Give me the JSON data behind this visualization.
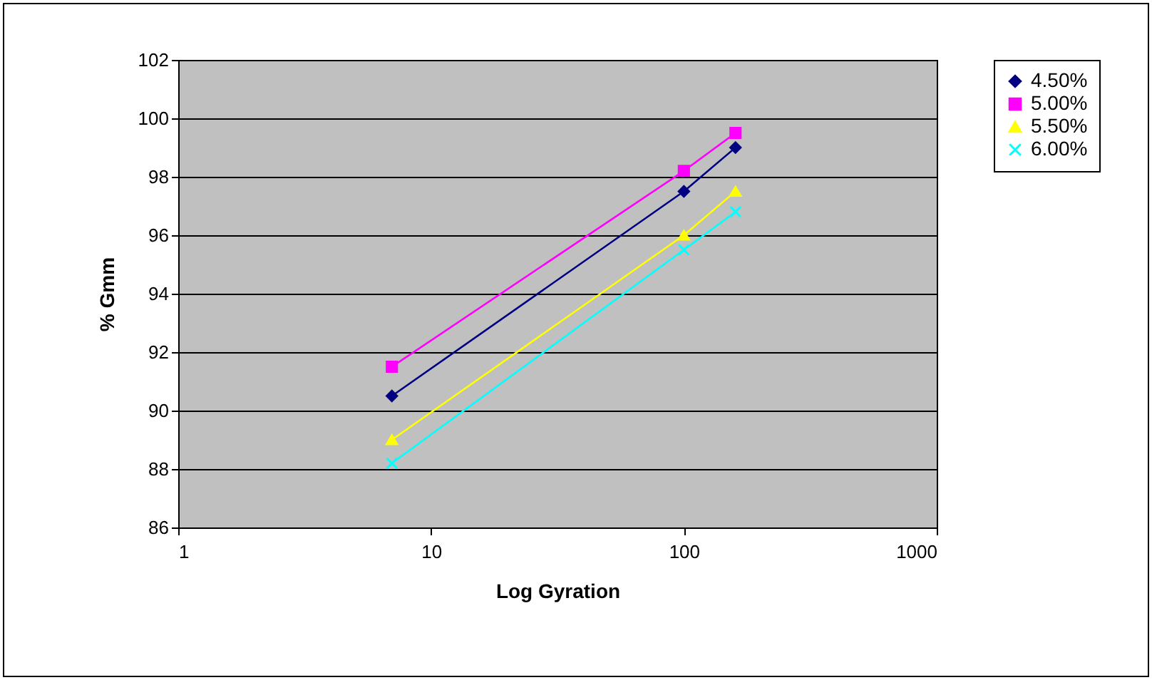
{
  "chart_data": {
    "type": "line",
    "xlabel": "Log Gyration",
    "ylabel": "% Gmm",
    "log": "x",
    "xlim": [
      1,
      1000
    ],
    "xticks": [
      1,
      10,
      100,
      1000
    ],
    "ylim": [
      86,
      102
    ],
    "yticks": [
      86,
      88,
      90,
      92,
      94,
      96,
      98,
      100,
      102
    ],
    "grid": "y",
    "legend": "right",
    "x": [
      7,
      100,
      160
    ],
    "series": [
      {
        "name": "4.50%",
        "color": "#000080",
        "marker": "diamond",
        "values": [
          90.5,
          97.5,
          99.0
        ]
      },
      {
        "name": "5.00%",
        "color": "#ff00ff",
        "marker": "square",
        "values": [
          91.5,
          98.2,
          99.5
        ]
      },
      {
        "name": "5.50%",
        "color": "#ffff00",
        "marker": "triangle",
        "values": [
          89.0,
          96.0,
          97.5
        ]
      },
      {
        "name": "6.00%",
        "color": "#00ffff",
        "marker": "cross",
        "values": [
          88.2,
          95.5,
          96.8
        ]
      }
    ]
  }
}
